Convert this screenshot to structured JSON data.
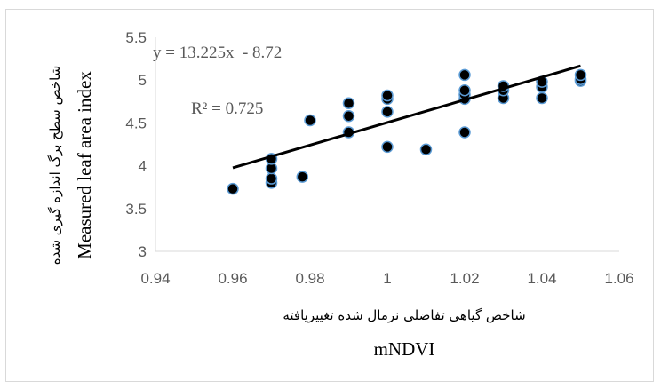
{
  "chart_data": {
    "type": "scatter",
    "x_axis": {
      "min": 0.94,
      "max": 1.06,
      "step": 0.02,
      "ticks": [
        "0.94",
        "0.96",
        "0.98",
        "1",
        "1.02",
        "1.04",
        "1.06"
      ],
      "label_fa": "شاخص گیاهی تفاضلی نرمال شده تغییریافته",
      "label_en": "mNDVI"
    },
    "y_axis": {
      "min": 3,
      "max": 5.5,
      "step": 0.5,
      "ticks": [
        "3",
        "3.5",
        "4",
        "4.5",
        "5",
        "5.5"
      ],
      "label_fa": "شاخص سطح برگ اندازه گیری شده",
      "label_en": "Measured leaf area index"
    },
    "grid": false,
    "series": [
      {
        "marker": "circle",
        "x": [
          0.96,
          0.97,
          0.97,
          0.97,
          0.97,
          0.978,
          0.98,
          0.99,
          0.99,
          0.99,
          1.0,
          1.0,
          1.0,
          1.0,
          1.01,
          1.02,
          1.02,
          1.02,
          1.02,
          1.02,
          1.03,
          1.03,
          1.03,
          1.04,
          1.04,
          1.04,
          1.05,
          1.05,
          1.05
        ],
        "y": [
          3.73,
          3.8,
          3.85,
          3.97,
          4.08,
          3.87,
          4.53,
          4.39,
          4.58,
          4.73,
          4.22,
          4.63,
          4.78,
          4.82,
          4.19,
          4.39,
          4.78,
          4.83,
          4.88,
          5.06,
          4.79,
          4.88,
          4.93,
          4.79,
          4.92,
          4.98,
          4.99,
          5.01,
          5.06
        ]
      }
    ],
    "trendline": {
      "slope": 13.225,
      "intercept": -8.72,
      "x_start": 0.96,
      "x_end": 1.05
    },
    "equation_text": "y = 13.225x  - 8.72",
    "r2_text": "R² = 0.725"
  },
  "colors": {
    "marker_fill": "#000000",
    "marker_stroke": "#5b9bd5",
    "trendline": "#000000",
    "text": "#595959",
    "axis": "#d9d9d9"
  }
}
